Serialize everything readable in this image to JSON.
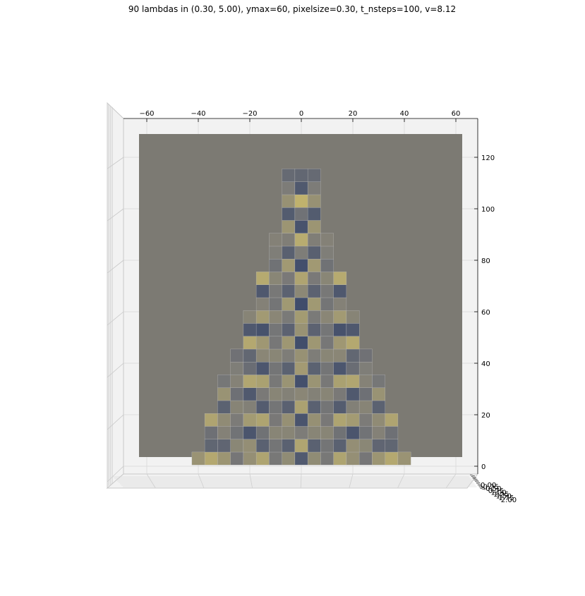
{
  "chart_data": {
    "type": "heatmap",
    "title": "90 lambdas in (0.30, 5.00), ymax=60, pixelsize=0.30, t_nsteps=100, v=8.12",
    "view": "3d-surface-top",
    "x_axis": {
      "range": [
        -60,
        60
      ],
      "ticks": [
        -60,
        -40,
        -20,
        0,
        20,
        40,
        60
      ],
      "labels": [
        "−60",
        "−40",
        "−20",
        "0",
        "20",
        "40",
        "60"
      ]
    },
    "y_axis": {
      "range": [
        0,
        125
      ],
      "ticks": [
        0,
        20,
        40,
        60,
        80,
        100,
        120
      ],
      "labels": [
        "0",
        "20",
        "40",
        "60",
        "80",
        "100",
        "120"
      ]
    },
    "z_axis": {
      "labels": [
        "0.00",
        "0.25",
        "0.50",
        "0.75",
        "1.00",
        "1.25",
        "1.50",
        "1.75",
        "2.00"
      ]
    },
    "field": {
      "apex": [
        0,
        115
      ],
      "base_y": 3,
      "base_halfwidth": 40,
      "cell_size": 5,
      "colormap": "cividis",
      "strong_cells": [
        {
          "x": 0,
          "y": 112,
          "v": 0.45
        },
        {
          "x": 0,
          "y": 107,
          "v": 0.2
        },
        {
          "x": 0,
          "y": 102,
          "v": 0.82
        },
        {
          "x": 0,
          "y": 97,
          "v": 0.02
        },
        {
          "x": 0,
          "y": 92,
          "v": 0.98
        },
        {
          "x": 0,
          "y": 87,
          "v": 0.12
        },
        {
          "x": -4,
          "y": 82,
          "v": 0.85
        },
        {
          "x": 4,
          "y": 82,
          "v": 0.85
        }
      ]
    },
    "grid": true
  },
  "colors": {
    "plane": "#7c7a73",
    "pane_fill": "#f2f2f2",
    "pane_edge": "#b0b0b0",
    "axis_line": "#000000"
  }
}
